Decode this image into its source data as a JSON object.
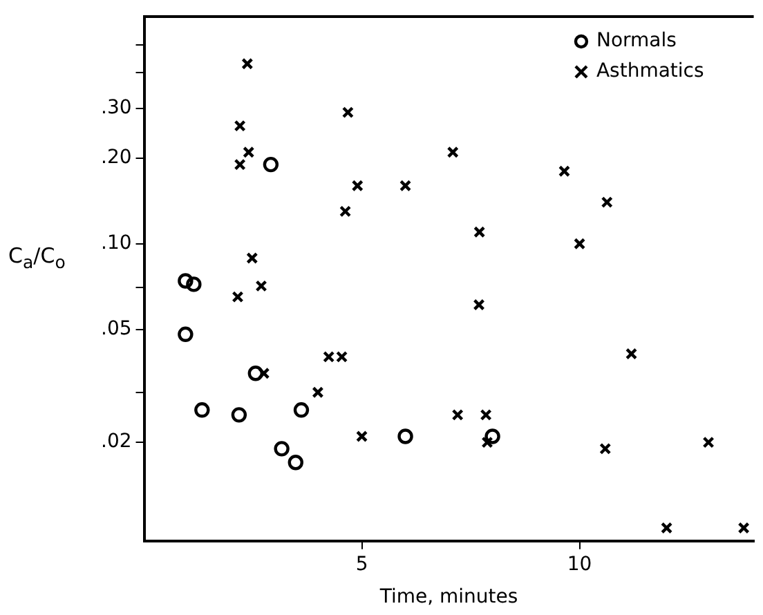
{
  "chart_data": {
    "type": "scatter",
    "xlabel": "Time, minutes",
    "ylabel": "C$_{a}$/C$_{o}$",
    "xlim": [
      0,
      14
    ],
    "xticks": [
      5,
      10
    ],
    "ylim": [
      0.009,
      0.63
    ],
    "log": "y",
    "yticks": [
      {
        "value": 0.02,
        "label": ".02"
      },
      {
        "value": 0.03,
        "label": null
      },
      {
        "value": 0.05,
        "label": ".05"
      },
      {
        "value": 0.07,
        "label": null
      },
      {
        "value": 0.1,
        "label": ".10"
      },
      {
        "value": 0.2,
        "label": ".20"
      },
      {
        "value": 0.3,
        "label": ".30"
      },
      {
        "value": 0.4,
        "label": null
      },
      {
        "value": 0.5,
        "label": null
      }
    ],
    "grid": false,
    "legend": "top right",
    "series": [
      {
        "name": "Normals",
        "color": "#000000",
        "marker": "circle",
        "x": [
          0.95,
          1.14,
          0.95,
          1.33,
          2.18,
          2.56,
          2.91,
          3.16,
          3.48,
          3.61,
          6.0,
          8.0
        ],
        "values": [
          0.074,
          0.072,
          0.048,
          0.026,
          0.025,
          0.035,
          0.19,
          0.019,
          0.017,
          0.026,
          0.021,
          0.021
        ]
      },
      {
        "name": "Asthmatics",
        "color": "#000000",
        "marker": "cross",
        "x": [
          2.37,
          2.2,
          2.4,
          2.2,
          4.68,
          7.09,
          4.9,
          6.0,
          4.62,
          9.65,
          10.63,
          7.7,
          10.0,
          2.48,
          2.15,
          2.69,
          7.69,
          4.24,
          4.54,
          2.75,
          3.99,
          7.2,
          7.85,
          5.0,
          7.88,
          11.19,
          10.59,
          12.96,
          12.0,
          13.77
        ],
        "values": [
          0.43,
          0.26,
          0.21,
          0.19,
          0.29,
          0.21,
          0.16,
          0.16,
          0.13,
          0.18,
          0.14,
          0.11,
          0.1,
          0.089,
          0.065,
          0.071,
          0.061,
          0.04,
          0.04,
          0.035,
          0.03,
          0.025,
          0.025,
          0.021,
          0.02,
          0.041,
          0.019,
          0.02,
          0.01,
          0.01
        ]
      }
    ]
  }
}
